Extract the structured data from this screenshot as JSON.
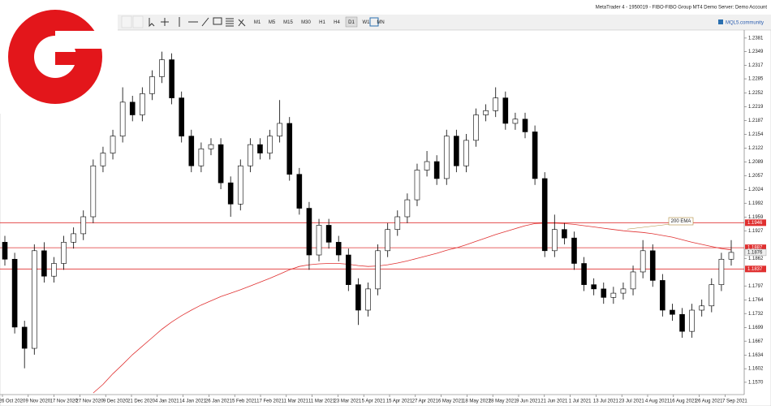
{
  "window": {
    "title": "MetaTrader 4 - 1950019 - FIBO-FIBO Group MT4 Demo Server: Demo Account",
    "community": "MQL5.community"
  },
  "toolbar": {
    "timeframes": [
      "M1",
      "M5",
      "M15",
      "M30",
      "H1",
      "H4",
      "D1",
      "W1",
      "MN"
    ],
    "active": "D1"
  },
  "chart": {
    "ylim": [
      1.1543,
      1.2398
    ],
    "yticks": [
      1.2381,
      1.2349,
      1.2317,
      1.2285,
      1.2252,
      1.2219,
      1.2187,
      1.2154,
      1.2122,
      1.2089,
      1.2057,
      1.2024,
      1.1992,
      1.1959,
      1.1927,
      1.1862,
      1.1797,
      1.1764,
      1.1732,
      1.1699,
      1.1667,
      1.1634,
      1.1602,
      {
        "value": 1.157,
        "label": "1.1570"
      }
    ],
    "levels": [
      {
        "price": 1.1946,
        "color": "#e03030"
      },
      {
        "price": 1.1887,
        "color": "#e03030"
      },
      {
        "price": 1.1837,
        "color": "#e03030"
      }
    ],
    "current_price": 1.1876,
    "ema_label": "200 EMA",
    "ema_color": "#e03030",
    "dates": [
      "26 Oct 2020",
      "9 Nov 2020",
      "17 Nov 2020",
      "27 Nov 2020",
      "9 Dec 2020",
      "21 Dec 2020",
      "4 Jan 2021",
      "14 Jan 2021",
      "26 Jan 2021",
      "5 Feb 2021",
      "17 Feb 2021",
      "1 Mar 2021",
      "11 Mar 2021",
      "23 Mar 2021",
      "5 Apr 2021",
      "15 Apr 2021",
      "27 Apr 2021",
      "6 May 2021",
      "18 May 2021",
      "28 May 2021",
      "9 Jun 2021",
      "21 Jun 2021",
      "1 Jul 2021",
      "13 Jul 2021",
      "23 Jul 2021",
      "4 Aug 2021",
      "16 Aug 2021",
      "26 Aug 2021",
      "7 Sep 2021"
    ],
    "candles": [
      [
        1.19,
        1.1915,
        1.1845,
        1.186
      ],
      [
        1.186,
        1.1875,
        1.1685,
        1.17
      ],
      [
        1.17,
        1.1715,
        1.1603,
        1.165
      ],
      [
        1.165,
        1.1895,
        1.1635,
        1.188
      ],
      [
        1.188,
        1.19,
        1.1805,
        1.182
      ],
      [
        1.182,
        1.1865,
        1.1805,
        1.185
      ],
      [
        1.185,
        1.1915,
        1.1835,
        1.19
      ],
      [
        1.19,
        1.1935,
        1.1885,
        1.192
      ],
      [
        1.192,
        1.1975,
        1.1905,
        1.196
      ],
      [
        1.196,
        1.2095,
        1.1945,
        1.208
      ],
      [
        1.208,
        1.2125,
        1.2065,
        1.211
      ],
      [
        1.211,
        1.2165,
        1.2095,
        1.215
      ],
      [
        1.215,
        1.2265,
        1.2135,
        1.223
      ],
      [
        1.223,
        1.2245,
        1.2185,
        1.22
      ],
      [
        1.22,
        1.2265,
        1.2185,
        1.225
      ],
      [
        1.225,
        1.2305,
        1.2235,
        1.229
      ],
      [
        1.229,
        1.2349,
        1.2275,
        1.233
      ],
      [
        1.233,
        1.2345,
        1.2225,
        1.224
      ],
      [
        1.224,
        1.2255,
        1.2135,
        1.215
      ],
      [
        1.215,
        1.2165,
        1.2065,
        1.208
      ],
      [
        1.208,
        1.2135,
        1.2065,
        1.212
      ],
      [
        1.212,
        1.2145,
        1.2105,
        1.213
      ],
      [
        1.213,
        1.2145,
        1.2025,
        1.204
      ],
      [
        1.204,
        1.2055,
        1.196,
        1.199
      ],
      [
        1.199,
        1.2095,
        1.1975,
        1.208
      ],
      [
        1.208,
        1.2145,
        1.2065,
        1.213
      ],
      [
        1.213,
        1.2145,
        1.2095,
        1.211
      ],
      [
        1.211,
        1.2165,
        1.2095,
        1.215
      ],
      [
        1.215,
        1.2235,
        1.2135,
        1.218
      ],
      [
        1.218,
        1.2195,
        1.2045,
        1.206
      ],
      [
        1.206,
        1.2075,
        1.1965,
        1.198
      ],
      [
        1.198,
        1.1995,
        1.1835,
        1.187
      ],
      [
        1.187,
        1.1955,
        1.1855,
        1.194
      ],
      [
        1.194,
        1.1955,
        1.1885,
        1.19
      ],
      [
        1.19,
        1.1915,
        1.1855,
        1.187
      ],
      [
        1.187,
        1.1885,
        1.1785,
        1.18
      ],
      [
        1.18,
        1.1815,
        1.1705,
        1.174
      ],
      [
        1.174,
        1.1805,
        1.1725,
        1.179
      ],
      [
        1.179,
        1.1895,
        1.1775,
        1.188
      ],
      [
        1.188,
        1.1945,
        1.1865,
        1.193
      ],
      [
        1.193,
        1.1975,
        1.1915,
        1.196
      ],
      [
        1.196,
        1.2015,
        1.1945,
        1.2
      ],
      [
        1.2,
        1.2085,
        1.1985,
        1.207
      ],
      [
        1.207,
        1.2115,
        1.2055,
        1.209
      ],
      [
        1.209,
        1.2105,
        1.2035,
        1.205
      ],
      [
        1.205,
        1.2165,
        1.2035,
        1.215
      ],
      [
        1.215,
        1.2165,
        1.2065,
        1.208
      ],
      [
        1.208,
        1.2155,
        1.2065,
        1.214
      ],
      [
        1.214,
        1.2215,
        1.2125,
        1.22
      ],
      [
        1.22,
        1.2225,
        1.2185,
        1.221
      ],
      [
        1.221,
        1.2265,
        1.2195,
        1.224
      ],
      [
        1.224,
        1.2255,
        1.2165,
        1.218
      ],
      [
        1.218,
        1.2205,
        1.2165,
        1.219
      ],
      [
        1.219,
        1.2205,
        1.2145,
        1.216
      ],
      [
        1.216,
        1.2175,
        1.2035,
        1.205
      ],
      [
        1.205,
        1.2065,
        1.1865,
        1.188
      ],
      [
        1.188,
        1.1965,
        1.1865,
        1.193
      ],
      [
        1.193,
        1.1945,
        1.1895,
        1.191
      ],
      [
        1.191,
        1.1925,
        1.1835,
        1.185
      ],
      [
        1.185,
        1.1865,
        1.1785,
        1.18
      ],
      [
        1.18,
        1.1815,
        1.1775,
        1.179
      ],
      [
        1.179,
        1.1805,
        1.1755,
        1.177
      ],
      [
        1.177,
        1.1795,
        1.1755,
        1.178
      ],
      [
        1.178,
        1.1805,
        1.1765,
        1.179
      ],
      [
        1.179,
        1.1845,
        1.1775,
        1.183
      ],
      [
        1.183,
        1.1905,
        1.1815,
        1.188
      ],
      [
        1.188,
        1.1895,
        1.1795,
        1.181
      ],
      [
        1.181,
        1.1825,
        1.1725,
        1.174
      ],
      [
        1.174,
        1.1755,
        1.1715,
        1.173
      ],
      [
        1.173,
        1.1745,
        1.1675,
        1.169
      ],
      [
        1.169,
        1.1755,
        1.1675,
        1.174
      ],
      [
        1.174,
        1.1765,
        1.1725,
        1.175
      ],
      [
        1.175,
        1.1815,
        1.1735,
        1.18
      ],
      [
        1.18,
        1.1875,
        1.1785,
        1.186
      ],
      [
        1.186,
        1.1905,
        1.1845,
        1.1876
      ]
    ],
    "ema": [
      null,
      null,
      null,
      null,
      null,
      null,
      null,
      null,
      null,
      1.1545,
      1.1565,
      1.159,
      1.1612,
      1.1635,
      1.1655,
      1.1675,
      1.1695,
      1.1712,
      1.1727,
      1.174,
      1.1752,
      1.1762,
      1.1772,
      1.178,
      1.1788,
      1.1797,
      1.1806,
      1.1815,
      1.1825,
      1.1835,
      1.1843,
      1.1847,
      1.1849,
      1.185,
      1.185,
      1.1848,
      1.1845,
      1.1843,
      1.1844,
      1.1847,
      1.1851,
      1.1856,
      1.1862,
      1.1868,
      1.1874,
      1.1881,
      1.1887,
      1.1894,
      1.1902,
      1.191,
      1.1918,
      1.1925,
      1.1932,
      1.1939,
      1.1944,
      1.1945,
      1.1945,
      1.1944,
      1.1942,
      1.1939,
      1.1936,
      1.1933,
      1.193,
      1.1927,
      1.1925,
      1.1923,
      1.192,
      1.1916,
      1.1912,
      1.1906,
      1.19,
      1.1895,
      1.189,
      1.1885,
      1.1882
    ]
  }
}
